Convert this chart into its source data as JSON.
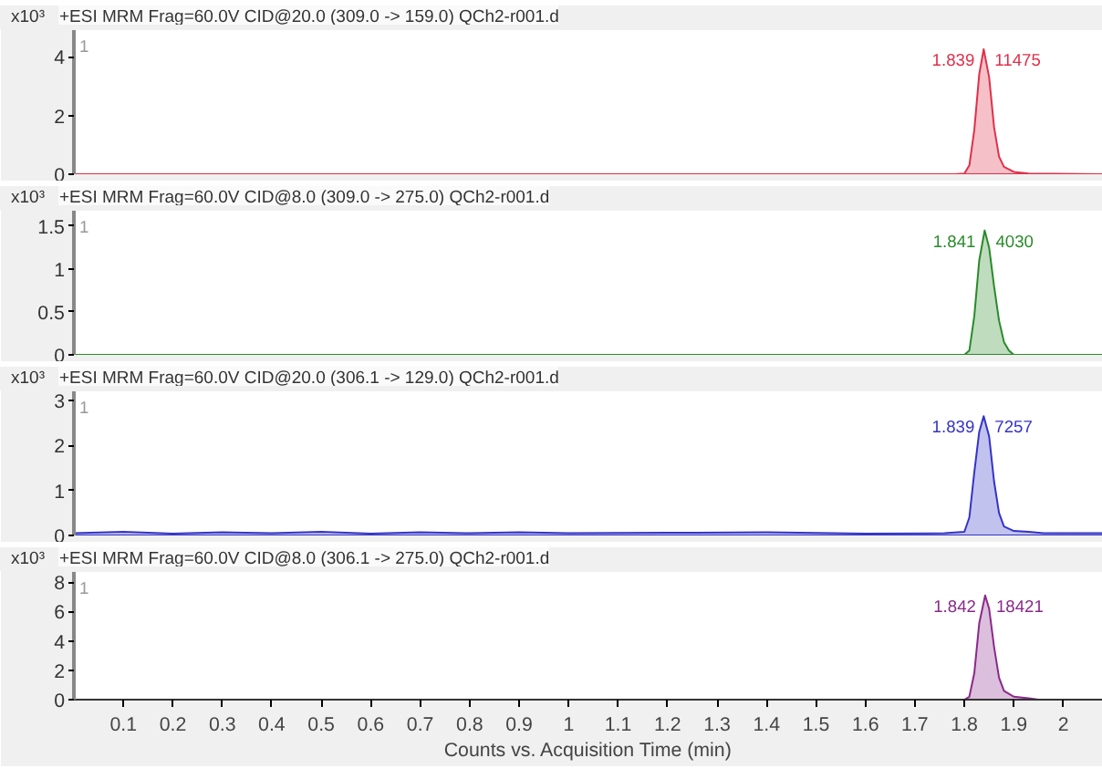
{
  "chart_data": [
    {
      "type": "area",
      "title": "+ESI MRM Frag=60.0V CID@20.0 (309.0 -> 159.0) QCh2-r001.d",
      "ylabel": "x10³",
      "xlim": [
        0,
        2.08
      ],
      "ylim": [
        0,
        4.9
      ],
      "yticks": [
        0,
        2,
        4
      ],
      "tick_labels": "y",
      "grid": false,
      "annotations": [
        "1",
        {
          "text": "1.839",
          "x": 1.839,
          "y": 4.25
        },
        {
          "text": "11475",
          "x": 1.839,
          "y": 4.25
        }
      ],
      "series": [
        {
          "color": "#e0304a",
          "x": [
            0,
            1.78,
            1.8,
            1.81,
            1.82,
            1.83,
            1.839,
            1.85,
            1.86,
            1.87,
            1.88,
            1.9,
            1.93,
            2.08
          ],
          "values": [
            0,
            0,
            0.02,
            0.3,
            1.5,
            3.4,
            4.25,
            3.3,
            1.6,
            0.6,
            0.25,
            0.08,
            0.02,
            0
          ]
        }
      ]
    },
    {
      "type": "area",
      "title": "+ESI MRM Frag=60.0V CID@8.0 (309.0 -> 275.0) QCh2-r001.d",
      "ylabel": "x10³",
      "xlim": [
        0,
        2.08
      ],
      "ylim": [
        0,
        1.68
      ],
      "yticks": [
        0,
        0.5,
        1,
        1.5
      ],
      "tick_labels": "y",
      "grid": false,
      "annotations": [
        "1",
        {
          "text": "1.841",
          "x": 1.841,
          "y": 1.45
        },
        {
          "text": "4030",
          "x": 1.841,
          "y": 1.45
        }
      ],
      "series": [
        {
          "color": "#2a8a2a",
          "x": [
            0,
            1.8,
            1.81,
            1.82,
            1.83,
            1.841,
            1.85,
            1.86,
            1.87,
            1.88,
            1.89,
            1.9,
            2.08
          ],
          "values": [
            0,
            0,
            0.05,
            0.45,
            1.1,
            1.45,
            1.25,
            0.8,
            0.4,
            0.15,
            0.05,
            0,
            0
          ]
        }
      ]
    },
    {
      "type": "area",
      "title": "+ESI MRM Frag=60.0V CID@20.0 (306.1 -> 129.0) QCh2-r001.d",
      "ylabel": "x10³",
      "xlim": [
        0,
        2.08
      ],
      "ylim": [
        0,
        3.2
      ],
      "yticks": [
        0,
        1,
        2,
        3
      ],
      "tick_labels": "y",
      "grid": false,
      "annotations": [
        "1",
        {
          "text": "1.839",
          "x": 1.839,
          "y": 2.65
        },
        {
          "text": "7257",
          "x": 1.839,
          "y": 2.65
        }
      ],
      "series": [
        {
          "color": "#3434c8",
          "x": [
            0,
            0.1,
            0.2,
            0.3,
            0.4,
            0.5,
            0.6,
            0.7,
            0.8,
            0.9,
            1.0,
            1.2,
            1.4,
            1.6,
            1.76,
            1.8,
            1.81,
            1.82,
            1.83,
            1.839,
            1.85,
            1.86,
            1.87,
            1.88,
            1.9,
            1.93,
            1.96,
            2.08
          ],
          "values": [
            0.05,
            0.08,
            0.04,
            0.07,
            0.05,
            0.08,
            0.04,
            0.07,
            0.05,
            0.07,
            0.05,
            0.06,
            0.07,
            0.04,
            0.05,
            0.08,
            0.4,
            1.4,
            2.3,
            2.65,
            2.2,
            1.2,
            0.5,
            0.2,
            0.1,
            0.08,
            0.05,
            0.05
          ]
        }
      ]
    },
    {
      "type": "area",
      "title": "+ESI MRM Frag=60.0V CID@8.0 (306.1 -> 275.0) QCh2-r001.d",
      "ylabel": "x10³",
      "xlabel": "Counts vs. Acquisition Time (min)",
      "xlim": [
        0,
        2.08
      ],
      "ylim": [
        0,
        8.7
      ],
      "yticks": [
        0,
        2,
        4,
        6,
        8
      ],
      "xticks": [
        0.1,
        0.2,
        0.3,
        0.4,
        0.5,
        0.6,
        0.7,
        0.8,
        0.9,
        1,
        1.1,
        1.2,
        1.3,
        1.4,
        1.5,
        1.6,
        1.7,
        1.8,
        1.9,
        2
      ],
      "grid": false,
      "annotations": [
        "1",
        {
          "text": "1.842",
          "x": 1.842,
          "y": 7.1
        },
        {
          "text": "18421",
          "x": 1.842,
          "y": 7.1
        }
      ],
      "series": [
        {
          "color": "#8a2a8a",
          "x": [
            0,
            1.8,
            1.81,
            1.82,
            1.83,
            1.842,
            1.85,
            1.86,
            1.87,
            1.88,
            1.9,
            1.93,
            1.95,
            2.08
          ],
          "values": [
            0,
            0,
            0.2,
            1.8,
            5.2,
            7.1,
            6.2,
            3.6,
            1.5,
            0.6,
            0.2,
            0.1,
            0,
            0
          ]
        }
      ]
    }
  ]
}
